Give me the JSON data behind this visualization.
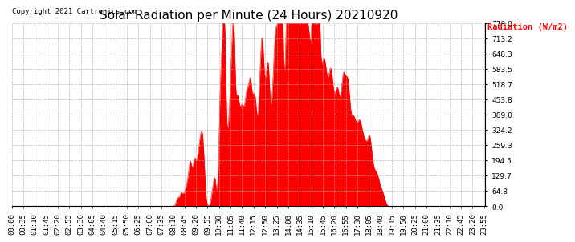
{
  "title": "Solar Radiation per Minute (24 Hours) 20210920",
  "ylabel": "Radiation (W/m2)",
  "copyright": "Copyright 2021 Cartronics.com",
  "fill_color": "#ff0000",
  "line_color": "#ff0000",
  "bg_color": "#ffffff",
  "grid_color": "#aaaaaa",
  "yticks": [
    0.0,
    64.8,
    129.7,
    194.5,
    259.3,
    324.2,
    389.0,
    453.8,
    518.7,
    583.5,
    648.3,
    713.2,
    778.0
  ],
  "ymax": 778.0,
  "ymin": 0.0,
  "title_fontsize": 11,
  "label_fontsize": 8,
  "tick_fontsize": 6.5
}
